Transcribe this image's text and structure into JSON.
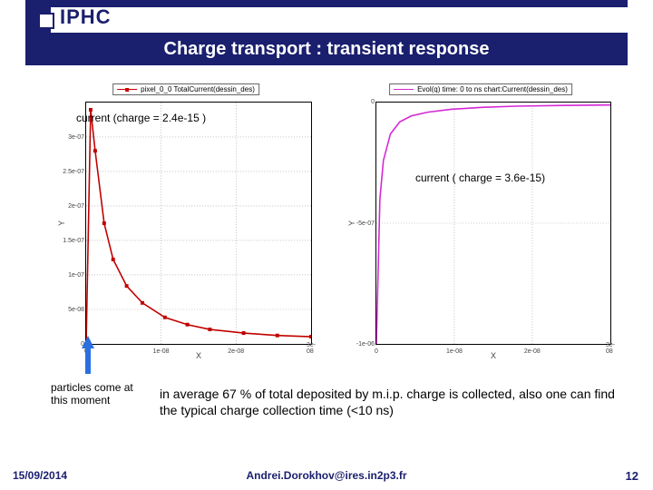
{
  "header": {
    "logo_text": "IPHC",
    "title": "Charge transport : transient response"
  },
  "chart_left": {
    "type": "line",
    "legend": "pixel_0_0 TotalCurrent(dessin_des)",
    "caption": "current (charge = 2.4e-15 )",
    "xlabel": "X",
    "ylabel": "Y",
    "xlim": [
      0,
      3e-08
    ],
    "ylim": [
      0,
      3.5e-07
    ],
    "xticks": [
      "0",
      "1e-08",
      "2e-08",
      "3e-08"
    ],
    "yticks": [
      "0",
      "5e-08",
      "1e-07",
      "1.5e-07",
      "2e-07",
      "2.5e-07",
      "3e-07"
    ],
    "line_color": "#c00000",
    "marker_color": "#c00000",
    "marker_style": "square",
    "line_width": 1.6,
    "background_color": "#ffffff",
    "grid_color": "#999999",
    "points_x": [
      0,
      0.02,
      0.04,
      0.08,
      0.12,
      0.18,
      0.25,
      0.35,
      0.45,
      0.55,
      0.7,
      0.85,
      1.0
    ],
    "points_y": [
      0,
      0.97,
      0.8,
      0.5,
      0.35,
      0.24,
      0.17,
      0.11,
      0.08,
      0.06,
      0.045,
      0.035,
      0.03
    ]
  },
  "chart_right": {
    "type": "line",
    "legend": "Evol(q)  time: 0 to ns      chart:Current(dessin_des)",
    "caption": "current ( charge = 3.6e-15)",
    "xlabel": "X",
    "ylabel": "Y",
    "xlim": [
      0,
      3e-08
    ],
    "ylim": [
      -1e-06,
      0
    ],
    "xticks": [
      "0",
      "1e-08",
      "2e-08",
      "3e-08"
    ],
    "yticks": [
      "-1e-06",
      "-5e-07",
      "0"
    ],
    "line_color": "#d428d4",
    "line_width": 1.6,
    "background_color": "#ffffff",
    "grid_color": "#999999",
    "points_x": [
      0,
      0.015,
      0.03,
      0.06,
      0.1,
      0.15,
      0.22,
      0.32,
      0.45,
      0.6,
      0.8,
      1.0
    ],
    "points_y": [
      1.0,
      0.4,
      0.24,
      0.13,
      0.08,
      0.055,
      0.04,
      0.028,
      0.02,
      0.015,
      0.012,
      0.01
    ]
  },
  "arrow": {
    "color": "#2a6fe0"
  },
  "notes": {
    "left": "particles come at this moment",
    "main": "in average 67 % of total deposited by m.i.p. charge is collected, also one can find the typical charge collection time (<10 ns)"
  },
  "footer": {
    "date": "15/09/2014",
    "email": "Andrei.Dorokhov@ires.in2p3.fr",
    "page": "12"
  }
}
